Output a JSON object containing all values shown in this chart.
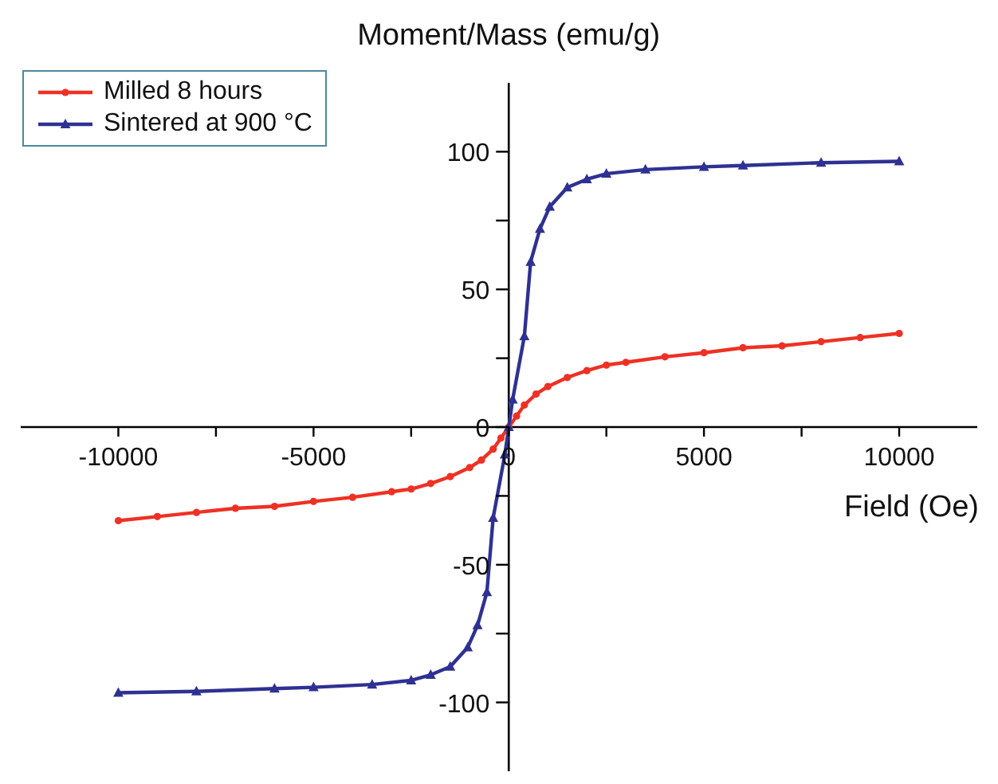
{
  "chart_data": {
    "type": "line",
    "xlabel": "Field (Oe)",
    "ylabel": "Moment/Mass (emu/g)",
    "xlim": [
      -12500,
      12000
    ],
    "ylim": [
      -125,
      125
    ],
    "xticks": [
      -10000,
      {
        "value": -7500,
        "label": null
      },
      -5000,
      {
        "value": -2500,
        "label": null
      },
      0,
      {
        "value": 2500,
        "label": null
      },
      5000,
      {
        "value": 7500,
        "label": null
      },
      10000
    ],
    "yticks": [
      -100,
      {
        "value": -75,
        "label": null
      },
      -50,
      {
        "value": -25,
        "label": null
      },
      0,
      {
        "value": 25,
        "label": null
      },
      50,
      {
        "value": 75,
        "label": null
      },
      100
    ],
    "legend": "top left",
    "line_style": "solid",
    "series": [
      {
        "name": "Milled 8 hours",
        "color": "#ee3124",
        "marker": "circle",
        "x": [
          -10000,
          -9000,
          -8000,
          -7000,
          -6000,
          -5000,
          -4000,
          -3000,
          -2500,
          -2000,
          -1500,
          -1000,
          -700,
          -400,
          -200,
          0,
          200,
          400,
          700,
          1000,
          1500,
          2000,
          2500,
          3000,
          4000,
          5000,
          6000,
          7000,
          8000,
          9000,
          10000
        ],
        "values": [
          -34,
          -32.5,
          -31,
          -29.5,
          -28.8,
          -27,
          -25.5,
          -23.5,
          -22.5,
          -20.5,
          -18,
          -14.7,
          -12,
          -8,
          -4,
          0,
          4,
          8,
          12,
          14.7,
          18,
          20.5,
          22.5,
          23.5,
          25.5,
          27,
          28.8,
          29.5,
          31,
          32.5,
          34
        ]
      },
      {
        "name": "Sintered at 900 °C",
        "color": "#2e3192",
        "marker": "triangle",
        "x": [
          -10000,
          -8000,
          -6000,
          -5000,
          -3500,
          -2500,
          -2000,
          -1500,
          -1050,
          -800,
          -560,
          -400,
          -100,
          0,
          100,
          400,
          560,
          800,
          1050,
          1500,
          2000,
          2500,
          3500,
          5000,
          6000,
          8000,
          10000
        ],
        "values": [
          -96.5,
          -96,
          -95,
          -94.5,
          -93.5,
          -92,
          -90,
          -87,
          -80,
          -72,
          -60,
          -33,
          -10,
          0,
          10,
          33,
          60,
          72,
          80,
          87,
          90,
          92,
          93.5,
          94.5,
          95,
          96,
          96.5
        ]
      }
    ]
  }
}
